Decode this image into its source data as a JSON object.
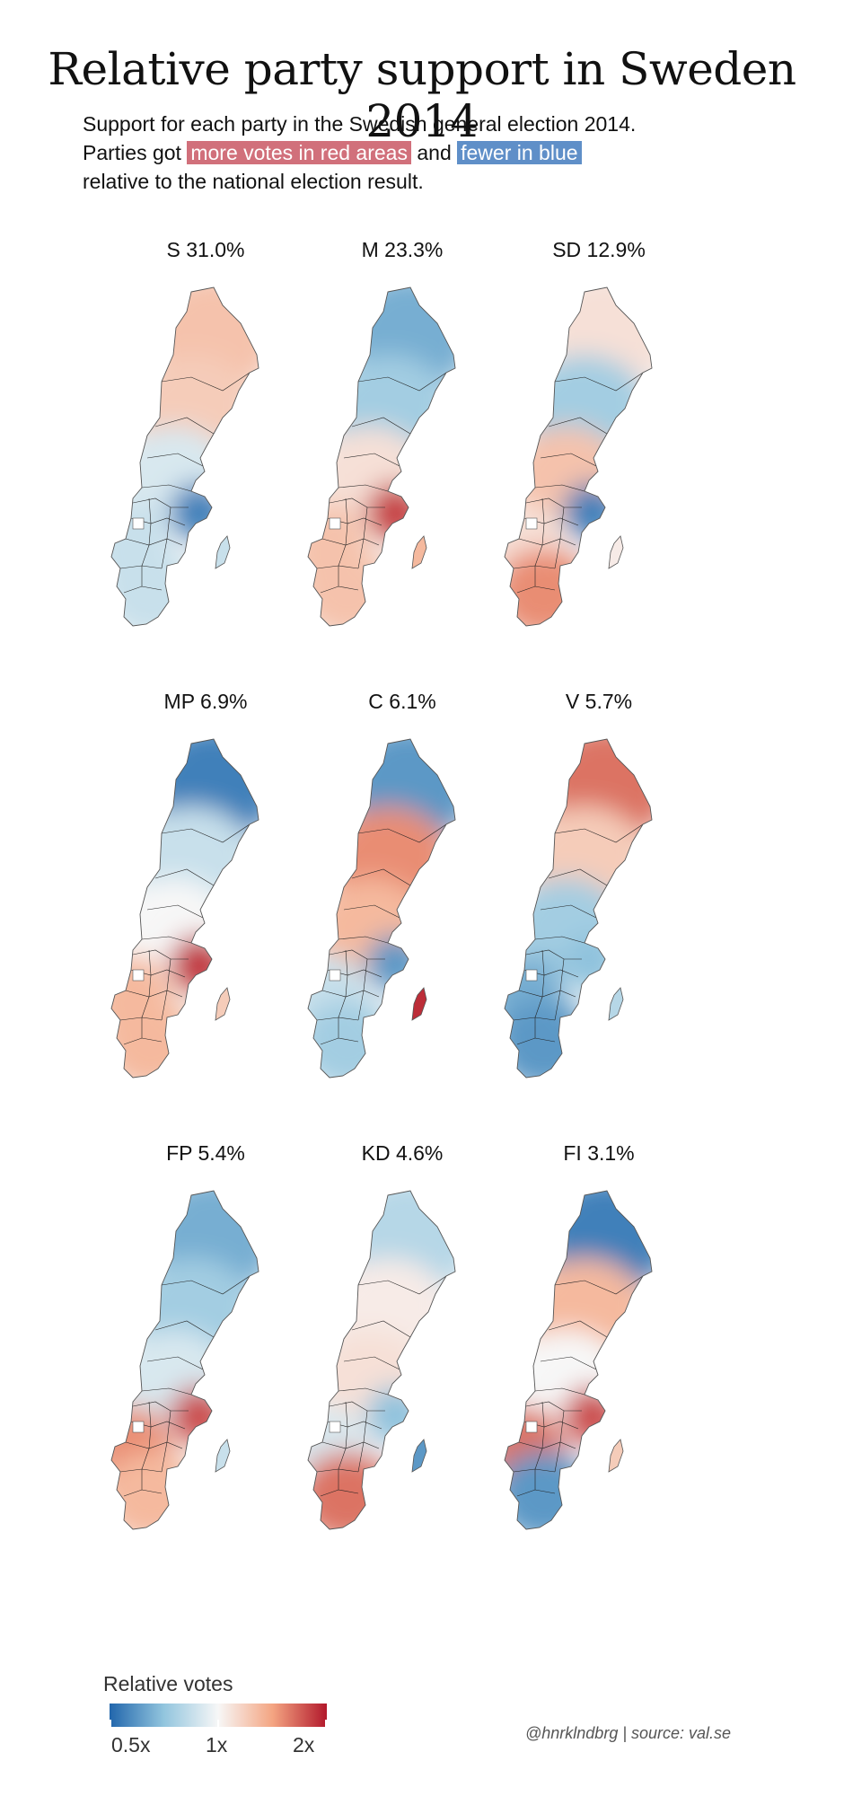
{
  "title": "Relative party support in Sweden 2014",
  "subtitle": {
    "line1": "Support for each party in the Swedish general election 2014.",
    "line2_prefix": "Parties got ",
    "highlight_red": "more votes in red areas",
    "line2_mid": " and ",
    "highlight_blue": "fewer in blue",
    "line3": "relative to the national election result."
  },
  "colors": {
    "low": "#2166ac",
    "mid": "#f7f7f7",
    "high": "#b2182b",
    "highlight_red": "#d1707b",
    "highlight_blue": "#5f8fc8"
  },
  "chart_data": {
    "type": "choropleth-small-multiples",
    "value": "relative votes (regional share / national share)",
    "scale": "log",
    "legend": {
      "title": "Relative votes",
      "ticks": [
        "0.5x",
        "1x",
        "2x"
      ],
      "domain": [
        0.5,
        2
      ]
    },
    "regions": [
      "north",
      "upper-middle",
      "middle",
      "west",
      "stockholm",
      "gotland",
      "south"
    ],
    "panels": [
      {
        "label": "S 31.0%",
        "party": "S",
        "national_pct": 31.0,
        "relative": {
          "north": 1.25,
          "upper-middle": 1.2,
          "middle": 0.9,
          "west": 0.85,
          "stockholm": 0.55,
          "gotland": 0.85,
          "south": 0.85
        }
      },
      {
        "label": "M 23.3%",
        "party": "M",
        "national_pct": 23.3,
        "relative": {
          "north": 0.65,
          "upper-middle": 0.75,
          "middle": 1.1,
          "west": 1.25,
          "stockholm": 1.8,
          "gotland": 1.3,
          "south": 1.25
        }
      },
      {
        "label": "SD 12.9%",
        "party": "SD",
        "national_pct": 12.9,
        "relative": {
          "north": 1.1,
          "upper-middle": 0.75,
          "middle": 1.25,
          "west": 1.1,
          "stockholm": 0.55,
          "gotland": 1.05,
          "south": 1.5
        }
      },
      {
        "label": "MP 6.9%",
        "party": "MP",
        "national_pct": 6.9,
        "relative": {
          "north": 0.55,
          "upper-middle": 0.85,
          "middle": 1.0,
          "west": 1.3,
          "stockholm": 1.85,
          "gotland": 1.2,
          "south": 1.3
        }
      },
      {
        "label": "C 6.1%",
        "party": "C",
        "national_pct": 6.1,
        "relative": {
          "north": 0.6,
          "upper-middle": 1.5,
          "middle": 1.3,
          "west": 0.85,
          "stockholm": 0.6,
          "gotland": 1.9,
          "south": 0.75
        }
      },
      {
        "label": "V 5.7%",
        "party": "V",
        "national_pct": 5.7,
        "relative": {
          "north": 1.6,
          "upper-middle": 1.2,
          "middle": 0.75,
          "west": 0.65,
          "stockholm": 0.7,
          "gotland": 0.8,
          "south": 0.6
        }
      },
      {
        "label": "FP 5.4%",
        "party": "FP",
        "national_pct": 5.4,
        "relative": {
          "north": 0.65,
          "upper-middle": 0.75,
          "middle": 0.9,
          "west": 1.5,
          "stockholm": 1.75,
          "gotland": 0.85,
          "south": 1.3
        }
      },
      {
        "label": "KD 4.6%",
        "party": "KD",
        "national_pct": 4.6,
        "relative": {
          "north": 0.8,
          "upper-middle": 1.05,
          "middle": 1.1,
          "west": 0.9,
          "stockholm": 0.7,
          "gotland": 0.6,
          "south": 1.6
        }
      },
      {
        "label": "FI 3.1%",
        "party": "FI",
        "national_pct": 3.1,
        "relative": {
          "north": 0.55,
          "upper-middle": 1.3,
          "middle": 1.0,
          "west": 1.6,
          "stockholm": 1.75,
          "gotland": 1.2,
          "south": 0.6
        }
      }
    ]
  },
  "credit": "@hnrklndbrg | source: val.se"
}
